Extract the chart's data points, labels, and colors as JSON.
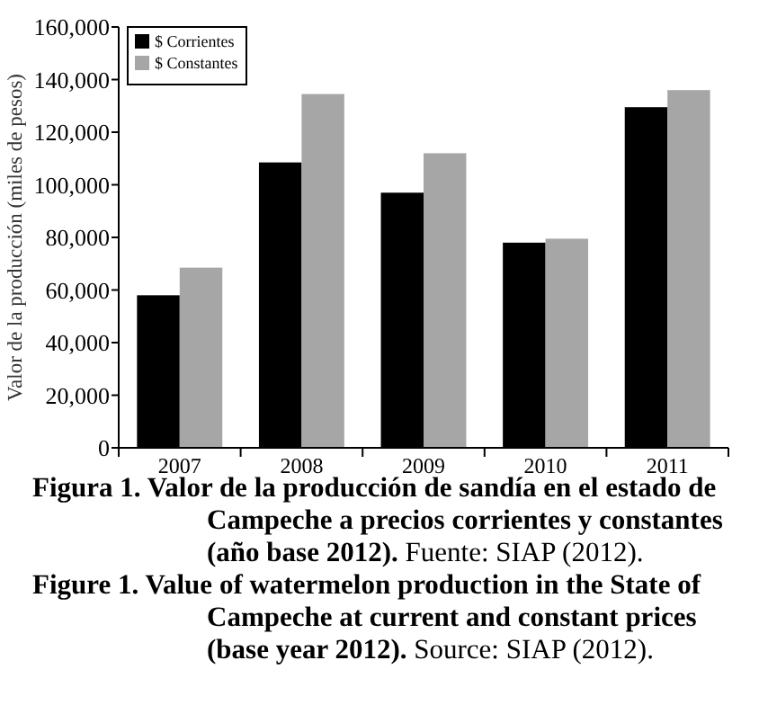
{
  "chart_data": {
    "type": "bar",
    "ylabel": "Valor de la producción (miles de pesos)",
    "categories": [
      "2007",
      "2008",
      "2009",
      "2010",
      "2011"
    ],
    "series": [
      {
        "name": "$ Corrientes",
        "color": "#000000",
        "values": [
          58000,
          108500,
          97000,
          78000,
          129500
        ]
      },
      {
        "name": "$ Constantes",
        "color": "#a6a6a6",
        "values": [
          68500,
          134500,
          112000,
          79500,
          136000
        ]
      }
    ],
    "ylim": [
      0,
      160000
    ],
    "yticks": [
      {
        "value": 0,
        "label": "0"
      },
      {
        "value": 20000,
        "label": "20,000"
      },
      {
        "value": 40000,
        "label": "40,000"
      },
      {
        "value": 60000,
        "label": "60,000"
      },
      {
        "value": 80000,
        "label": "80,000"
      },
      {
        "value": 100000,
        "label": "100,000"
      },
      {
        "value": 120000,
        "label": "120,000"
      },
      {
        "value": 140000,
        "label": "140,000"
      },
      {
        "value": 160000,
        "label": "160,000"
      }
    ],
    "grid": false,
    "legend": "top left",
    "annotations": [
      "Figura 1. Valor de la producción de sandía en el estado de Campeche a precios corrientes y constantes (año base 2012).",
      "Fuente: SIAP (2012).",
      "Figure 1. Value of watermelon production in the State of Campeche at current and constant prices (base year 2012).",
      "Source: SIAP (2012)."
    ]
  }
}
